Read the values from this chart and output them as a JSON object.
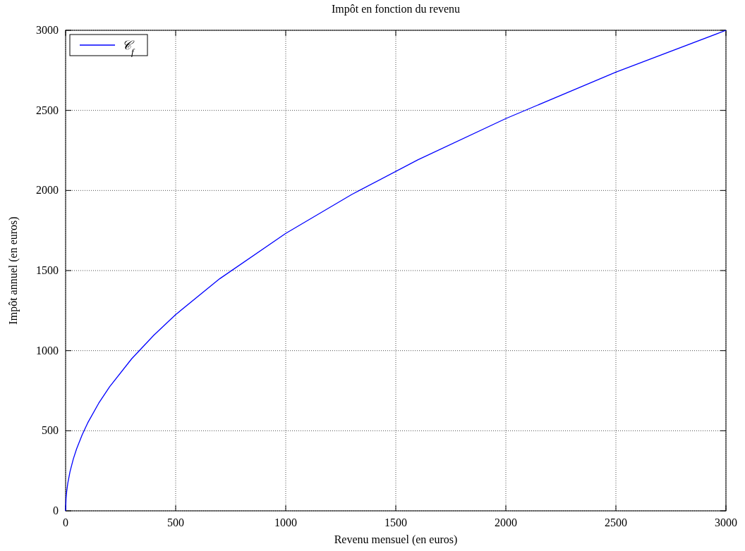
{
  "chart_data": {
    "type": "line",
    "title": "Impôt en fonction du revenu",
    "xlabel": "Revenu mensuel (en euros)",
    "ylabel": "Impôt annuel (en euros)",
    "x": [
      0,
      2,
      5,
      10,
      20,
      35,
      50,
      75,
      100,
      150,
      200,
      300,
      400,
      500,
      700,
      1000,
      1300,
      1600,
      2000,
      2500,
      3000
    ],
    "series": [
      {
        "name": "𝒞$_{f}$",
        "color": "#0000ff",
        "values": [
          0,
          77,
          122,
          173,
          245,
          324,
          387,
          474,
          548,
          671,
          775,
          949,
          1095,
          1225,
          1449,
          1732,
          1975,
          2191,
          2449,
          2739,
          3000
        ]
      }
    ],
    "xlim": [
      0,
      3000
    ],
    "xticks": [
      0,
      500,
      1000,
      1500,
      2000,
      2500,
      3000
    ],
    "ylim": [
      0,
      3000
    ],
    "yticks": [
      0,
      500,
      1000,
      1500,
      2000,
      2500,
      3000
    ],
    "grid": true,
    "legend": "top left",
    "marker": "none",
    "line_style": "solid"
  }
}
